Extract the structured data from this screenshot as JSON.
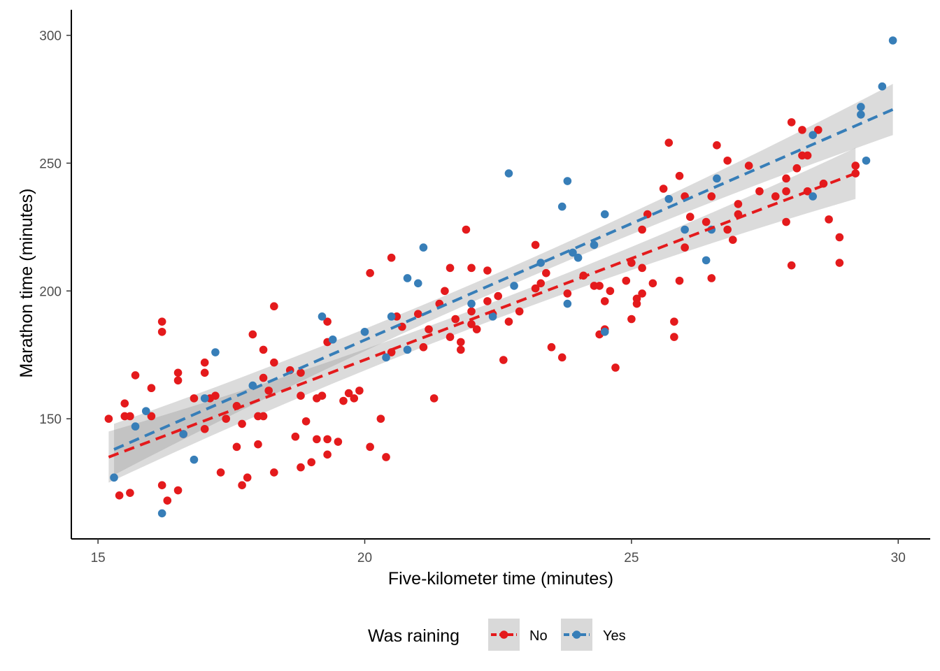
{
  "chart_data": {
    "type": "scatter",
    "xlabel": "Five-kilometer time (minutes)",
    "ylabel": "Marathon time (minutes)",
    "xlim": [
      14.5,
      30.6
    ],
    "ylim": [
      103,
      310
    ],
    "x_ticks": [
      15,
      20,
      25,
      30
    ],
    "x_tick_labels": [
      "15",
      "20",
      "25",
      "30"
    ],
    "y_ticks": [
      150,
      200,
      250,
      300
    ],
    "y_tick_labels": [
      "150",
      "200",
      "250",
      "300"
    ],
    "grid": false,
    "legend": {
      "title": "Was raining",
      "placement": "bottom"
    },
    "series": [
      {
        "name": "No",
        "color": "#e41a1c",
        "points": [
          [
            15.2,
            150
          ],
          [
            15.4,
            120
          ],
          [
            15.5,
            156
          ],
          [
            15.5,
            151
          ],
          [
            15.6,
            151
          ],
          [
            15.6,
            121
          ],
          [
            15.7,
            167
          ],
          [
            16.0,
            162
          ],
          [
            16.0,
            151
          ],
          [
            16.2,
            188
          ],
          [
            16.2,
            184
          ],
          [
            16.2,
            124
          ],
          [
            16.3,
            118
          ],
          [
            16.5,
            168
          ],
          [
            16.5,
            165
          ],
          [
            16.5,
            122
          ],
          [
            16.6,
            144
          ],
          [
            16.8,
            158
          ],
          [
            17.0,
            172
          ],
          [
            17.0,
            168
          ],
          [
            17.0,
            146
          ],
          [
            17.1,
            158
          ],
          [
            17.2,
            159
          ],
          [
            17.3,
            129
          ],
          [
            17.4,
            150
          ],
          [
            17.6,
            155
          ],
          [
            17.6,
            139
          ],
          [
            17.7,
            148
          ],
          [
            17.7,
            124
          ],
          [
            17.8,
            127
          ],
          [
            17.9,
            183
          ],
          [
            18.0,
            151
          ],
          [
            18.0,
            140
          ],
          [
            18.1,
            177
          ],
          [
            18.1,
            166
          ],
          [
            18.1,
            151
          ],
          [
            18.2,
            161
          ],
          [
            18.3,
            194
          ],
          [
            18.3,
            172
          ],
          [
            18.3,
            129
          ],
          [
            18.6,
            169
          ],
          [
            18.7,
            143
          ],
          [
            18.8,
            168
          ],
          [
            18.8,
            159
          ],
          [
            18.8,
            131
          ],
          [
            18.9,
            149
          ],
          [
            19.0,
            133
          ],
          [
            19.1,
            158
          ],
          [
            19.1,
            142
          ],
          [
            19.2,
            159
          ],
          [
            19.3,
            188
          ],
          [
            19.3,
            180
          ],
          [
            19.3,
            142
          ],
          [
            19.3,
            136
          ],
          [
            19.5,
            141
          ],
          [
            19.6,
            157
          ],
          [
            19.7,
            160
          ],
          [
            19.8,
            158
          ],
          [
            19.9,
            161
          ],
          [
            20.1,
            207
          ],
          [
            20.1,
            139
          ],
          [
            20.3,
            150
          ],
          [
            20.4,
            135
          ],
          [
            20.5,
            213
          ],
          [
            20.5,
            176
          ],
          [
            20.6,
            190
          ],
          [
            20.7,
            186
          ],
          [
            21.0,
            191
          ],
          [
            21.1,
            178
          ],
          [
            21.2,
            185
          ],
          [
            21.3,
            158
          ],
          [
            21.4,
            195
          ],
          [
            21.5,
            200
          ],
          [
            21.6,
            209
          ],
          [
            21.6,
            182
          ],
          [
            21.7,
            189
          ],
          [
            21.8,
            177
          ],
          [
            21.8,
            180
          ],
          [
            21.9,
            224
          ],
          [
            22.0,
            209
          ],
          [
            22.0,
            192
          ],
          [
            22.0,
            187
          ],
          [
            22.1,
            185
          ],
          [
            22.3,
            196
          ],
          [
            22.3,
            208
          ],
          [
            22.4,
            191
          ],
          [
            22.5,
            198
          ],
          [
            22.6,
            173
          ],
          [
            22.7,
            188
          ],
          [
            22.9,
            192
          ],
          [
            23.2,
            218
          ],
          [
            23.2,
            201
          ],
          [
            23.3,
            203
          ],
          [
            23.4,
            207
          ],
          [
            23.5,
            178
          ],
          [
            23.7,
            174
          ],
          [
            23.8,
            199
          ],
          [
            24.1,
            206
          ],
          [
            24.3,
            202
          ],
          [
            24.4,
            202
          ],
          [
            24.4,
            183
          ],
          [
            24.5,
            196
          ],
          [
            24.5,
            185
          ],
          [
            24.6,
            200
          ],
          [
            24.7,
            170
          ],
          [
            24.9,
            204
          ],
          [
            25.0,
            211
          ],
          [
            25.0,
            189
          ],
          [
            25.1,
            195
          ],
          [
            25.1,
            197
          ],
          [
            25.2,
            224
          ],
          [
            25.2,
            209
          ],
          [
            25.2,
            199
          ],
          [
            25.3,
            230
          ],
          [
            25.4,
            203
          ],
          [
            25.6,
            240
          ],
          [
            25.7,
            258
          ],
          [
            25.8,
            188
          ],
          [
            25.8,
            182
          ],
          [
            25.9,
            245
          ],
          [
            25.9,
            204
          ],
          [
            26.0,
            237
          ],
          [
            26.0,
            217
          ],
          [
            26.1,
            229
          ],
          [
            26.4,
            227
          ],
          [
            26.5,
            237
          ],
          [
            26.5,
            205
          ],
          [
            26.6,
            257
          ],
          [
            26.8,
            251
          ],
          [
            26.8,
            224
          ],
          [
            26.9,
            220
          ],
          [
            27.0,
            234
          ],
          [
            27.0,
            230
          ],
          [
            27.2,
            249
          ],
          [
            27.4,
            239
          ],
          [
            27.7,
            237
          ],
          [
            27.9,
            244
          ],
          [
            27.9,
            239
          ],
          [
            27.9,
            227
          ],
          [
            28.0,
            266
          ],
          [
            28.0,
            210
          ],
          [
            28.1,
            248
          ],
          [
            28.2,
            263
          ],
          [
            28.2,
            253
          ],
          [
            28.3,
            253
          ],
          [
            28.3,
            239
          ],
          [
            28.5,
            263
          ],
          [
            28.6,
            242
          ],
          [
            28.7,
            228
          ],
          [
            28.9,
            221
          ],
          [
            28.9,
            211
          ],
          [
            29.2,
            249
          ],
          [
            29.2,
            246
          ]
        ],
        "trend": {
          "x": [
            15.2,
            29.2
          ],
          "y": [
            135,
            246
          ]
        }
      },
      {
        "name": "Yes",
        "color": "#377eb8",
        "points": [
          [
            15.3,
            127
          ],
          [
            15.7,
            147
          ],
          [
            15.9,
            153
          ],
          [
            16.2,
            113
          ],
          [
            16.6,
            144
          ],
          [
            16.8,
            134
          ],
          [
            17.0,
            158
          ],
          [
            17.2,
            176
          ],
          [
            17.9,
            163
          ],
          [
            19.2,
            190
          ],
          [
            19.4,
            181
          ],
          [
            20.0,
            184
          ],
          [
            20.4,
            174
          ],
          [
            20.5,
            190
          ],
          [
            20.8,
            205
          ],
          [
            20.8,
            177
          ],
          [
            21.0,
            203
          ],
          [
            21.1,
            217
          ],
          [
            22.0,
            195
          ],
          [
            22.4,
            190
          ],
          [
            22.7,
            246
          ],
          [
            22.8,
            202
          ],
          [
            23.3,
            211
          ],
          [
            23.7,
            233
          ],
          [
            23.8,
            243
          ],
          [
            23.8,
            195
          ],
          [
            23.9,
            215
          ],
          [
            24.0,
            213
          ],
          [
            24.3,
            218
          ],
          [
            24.5,
            230
          ],
          [
            24.5,
            184
          ],
          [
            25.7,
            236
          ],
          [
            26.0,
            224
          ],
          [
            26.4,
            212
          ],
          [
            26.5,
            224
          ],
          [
            26.6,
            244
          ],
          [
            28.4,
            261
          ],
          [
            28.4,
            237
          ],
          [
            29.3,
            272
          ],
          [
            29.3,
            269
          ],
          [
            29.4,
            251
          ],
          [
            29.7,
            280
          ],
          [
            29.9,
            298
          ]
        ],
        "trend": {
          "x": [
            15.3,
            29.9
          ],
          "y": [
            138,
            271
          ]
        }
      }
    ]
  }
}
